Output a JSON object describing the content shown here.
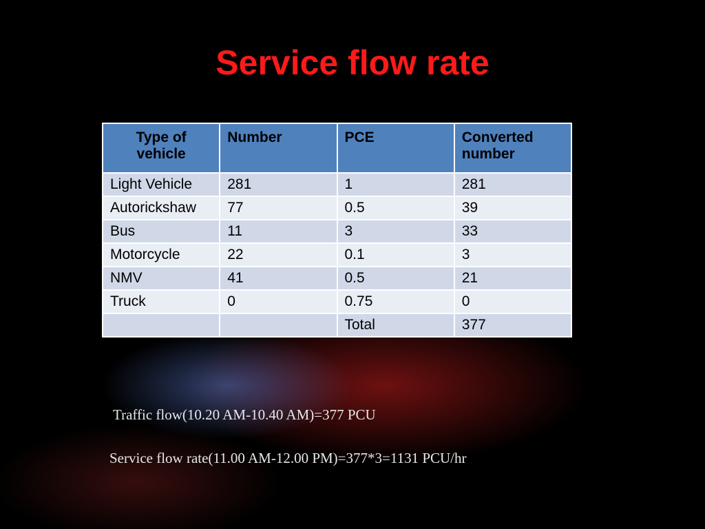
{
  "title": "Service flow rate",
  "table": {
    "header": [
      "Type of vehicle",
      "Number",
      "PCE",
      "Converted number"
    ],
    "rows": [
      [
        "Light Vehicle",
        281,
        1,
        281
      ],
      [
        "Autorickshaw",
        77,
        0.5,
        39
      ],
      [
        "Bus",
        11,
        3,
        33
      ],
      [
        "Motorcycle",
        22,
        0.1,
        3
      ],
      [
        "NMV",
        41,
        0.5,
        21
      ],
      [
        "Truck",
        0,
        0.75,
        0
      ],
      [
        null,
        null,
        "Total",
        377
      ]
    ]
  },
  "notes": [
    "Traffic flow(10.20 AM-10.40 AM)=377 PCU",
    "Service flow rate(11.00 AM-12.00 PM)=377*3=1131 PCU/hr"
  ]
}
